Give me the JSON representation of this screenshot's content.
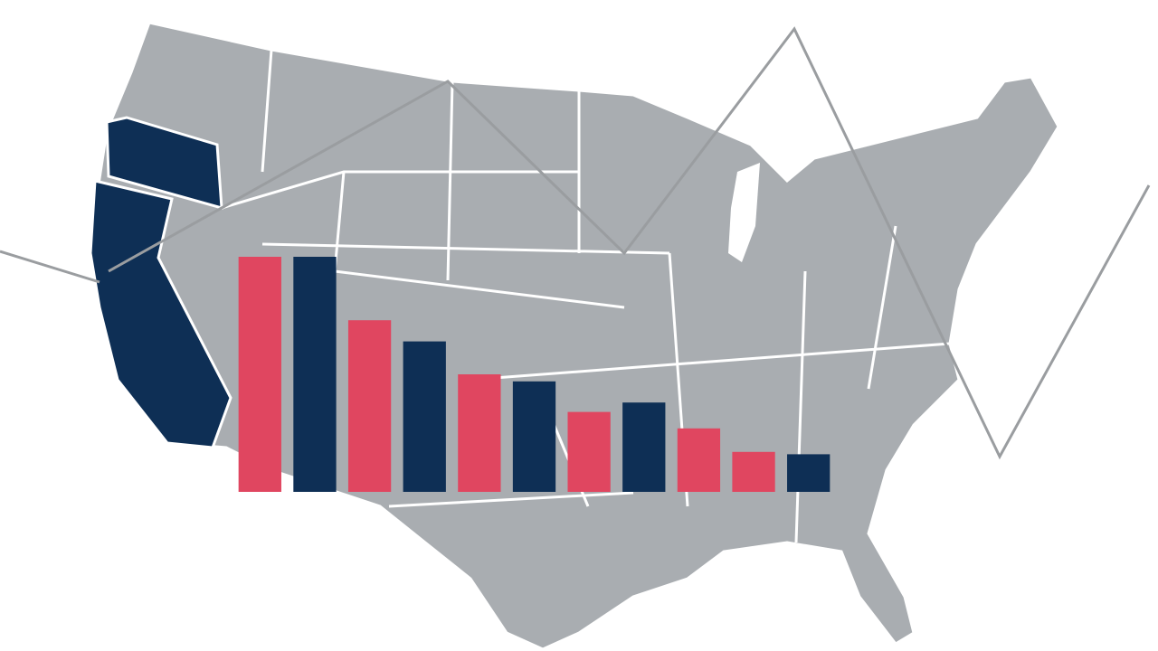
{
  "chart_data": {
    "type": "bar",
    "categories": [
      null,
      null,
      null,
      null,
      null,
      null,
      null,
      null,
      null,
      null,
      null
    ],
    "values": [
      100,
      100,
      73,
      64,
      50,
      47,
      34,
      38,
      27,
      17,
      16
    ],
    "colors": [
      "#e04660",
      "#0e2f55",
      "#e04660",
      "#0e2f55",
      "#e04660",
      "#0e2f55",
      "#e04660",
      "#0e2f55",
      "#e04660",
      "#e04660",
      "#0e2f55"
    ],
    "ylim": [
      0,
      100
    ]
  }
}
